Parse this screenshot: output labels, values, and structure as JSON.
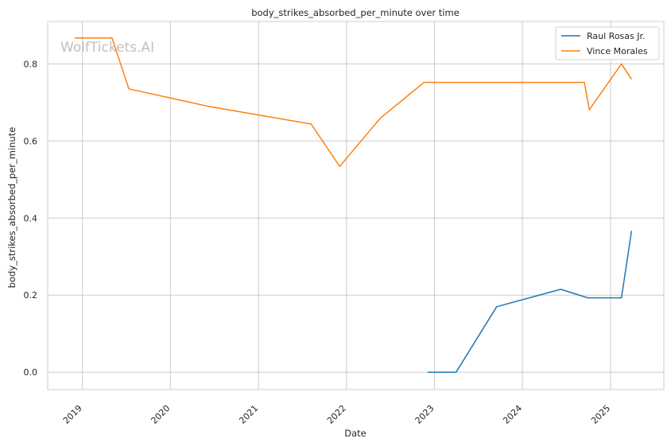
{
  "watermark": "WolfTickets.AI",
  "chart_data": {
    "type": "line",
    "title": "body_strikes_absorbed_per_minute over time",
    "xlabel": "Date",
    "ylabel": "body_strikes_absorbed_per_minute",
    "x_ticks": [
      "2019",
      "2020",
      "2021",
      "2022",
      "2023",
      "2024",
      "2025"
    ],
    "y_ticks": [
      "0.0",
      "0.2",
      "0.4",
      "0.6",
      "0.8"
    ],
    "xlim": [
      "2018-08-10",
      "2025-08-10"
    ],
    "ylim": [
      -0.045,
      0.91
    ],
    "grid": true,
    "legend_position": "top-right",
    "series": [
      {
        "name": "Raul Rosas Jr.",
        "color": "#1f77b4",
        "points": [
          {
            "x": "2022-12-03",
            "y": 0.0
          },
          {
            "x": "2023-04-01",
            "y": 0.0
          },
          {
            "x": "2023-09-16",
            "y": 0.17
          },
          {
            "x": "2024-06-08",
            "y": 0.215
          },
          {
            "x": "2024-09-28",
            "y": 0.193
          },
          {
            "x": "2025-02-15",
            "y": 0.193
          },
          {
            "x": "2025-03-29",
            "y": 0.367
          }
        ]
      },
      {
        "name": "Vince Morales",
        "color": "#ff7f0e",
        "points": [
          {
            "x": "2018-11-30",
            "y": 0.867
          },
          {
            "x": "2019-05-04",
            "y": 0.867
          },
          {
            "x": "2019-07-13",
            "y": 0.735
          },
          {
            "x": "2020-06-06",
            "y": 0.69
          },
          {
            "x": "2021-08-07",
            "y": 0.644
          },
          {
            "x": "2021-12-04",
            "y": 0.534
          },
          {
            "x": "2022-05-21",
            "y": 0.659
          },
          {
            "x": "2022-11-19",
            "y": 0.752
          },
          {
            "x": "2024-09-14",
            "y": 0.752
          },
          {
            "x": "2024-10-05",
            "y": 0.681
          },
          {
            "x": "2025-02-15",
            "y": 0.8
          },
          {
            "x": "2025-03-29",
            "y": 0.76
          }
        ]
      }
    ]
  }
}
